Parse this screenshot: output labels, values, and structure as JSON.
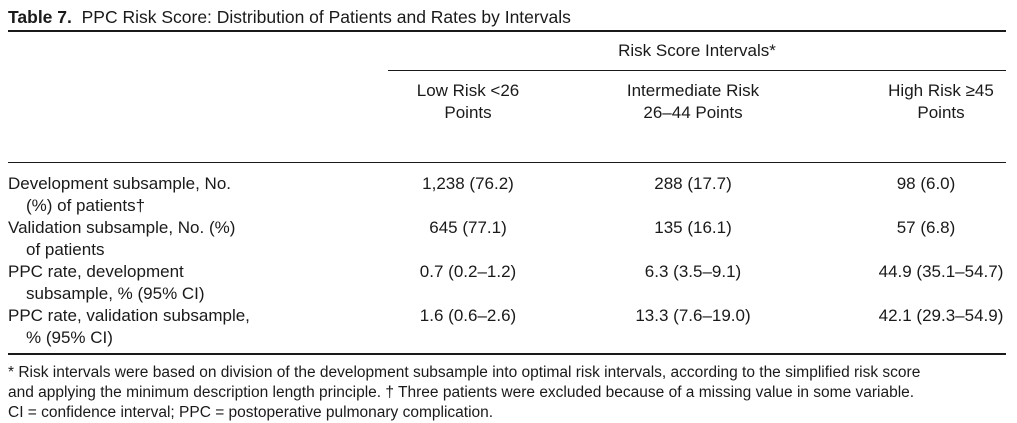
{
  "table": {
    "caption_number": "Table 7.",
    "caption_title": "PPC Risk Score: Distribution of Patients and Rates by Intervals",
    "spanner": "Risk Score Intervals*",
    "columns": [
      {
        "line1": "Low Risk <26",
        "line2": "Points"
      },
      {
        "line1": "Intermediate Risk",
        "line2": "26–44 Points"
      },
      {
        "line1": "High Risk ≥45",
        "line2": "Points"
      }
    ],
    "rows": [
      {
        "label_line1": "Development subsample, No.",
        "label_line2": "(%) of patients†",
        "values": [
          "1,238 (76.2)",
          "288 (17.7)",
          "98 (6.0)"
        ]
      },
      {
        "label_line1": "Validation subsample, No. (%)",
        "label_line2": "of patients",
        "values": [
          "645 (77.1)",
          "135 (16.1)",
          "57 (6.8)"
        ]
      },
      {
        "label_line1": "PPC rate, development",
        "label_line2": "subsample, % (95% CI)",
        "values": [
          "0.7 (0.2–1.2)",
          "6.3 (3.5–9.1)",
          "44.9 (35.1–54.7)"
        ]
      },
      {
        "label_line1": "PPC rate, validation subsample,",
        "label_line2": "% (95% CI)",
        "values": [
          "1.6 (0.6–2.6)",
          "13.3 (7.6–19.0)",
          "42.1 (29.3–54.9)"
        ]
      }
    ],
    "footnotes": [
      "* Risk intervals were based on division of the development subsample into optimal risk intervals, according to the simplified risk score",
      "and applying the minimum description length principle. † Three patients were excluded because of a missing value in some variable.",
      "CI = confidence interval; PPC = postoperative pulmonary complication."
    ]
  }
}
